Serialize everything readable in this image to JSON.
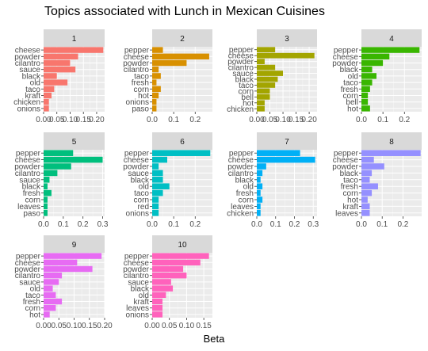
{
  "title": "Topics associated with Lunch in Mexican Cuisines",
  "xlabel": "Beta",
  "chart_data": {
    "type": "bar",
    "orientation": "horizontal",
    "facet_layout": {
      "columns": 4,
      "rows": 3
    },
    "grid": true,
    "legend": "none",
    "panels": [
      {
        "name": "1",
        "color": "#F8766D",
        "xlim": [
          0,
          0.23
        ],
        "xticks": [
          "0.00",
          "0.05",
          "0.10",
          "0.15",
          "0.20"
        ],
        "xtick_values": [
          0,
          0.05,
          0.1,
          0.15,
          0.2
        ],
        "categories": [
          "cheese",
          "powder",
          "cilantro",
          "sauce",
          "black",
          "old",
          "taco",
          "kraft",
          "chicken",
          "onions"
        ],
        "values": [
          0.225,
          0.13,
          0.1,
          0.12,
          0.05,
          0.09,
          0.04,
          0.03,
          0.02,
          0.02
        ]
      },
      {
        "name": "2",
        "color": "#D89000",
        "xlim": [
          0,
          0.28
        ],
        "xticks": [
          "0.0",
          "0.1",
          "0.2"
        ],
        "xtick_values": [
          0,
          0.1,
          0.2
        ],
        "categories": [
          "pepper",
          "cheese",
          "powder",
          "cilantro",
          "taco",
          "fresh",
          "corn",
          "hot",
          "onions",
          "paso"
        ],
        "values": [
          0.05,
          0.265,
          0.16,
          0.03,
          0.04,
          0.02,
          0.04,
          0.03,
          0.02,
          0.02
        ]
      },
      {
        "name": "3",
        "color": "#A3A500",
        "xlim": [
          0,
          0.23
        ],
        "xticks": [
          "0.00",
          "0.05",
          "0.10",
          "0.15",
          "0.20"
        ],
        "xtick_values": [
          0,
          0.05,
          0.1,
          0.15,
          0.2
        ],
        "categories": [
          "pepper",
          "cheese",
          "powder",
          "cilantro",
          "sauce",
          "black",
          "taco",
          "corn",
          "bell",
          "hot",
          "chicken"
        ],
        "values": [
          0.07,
          0.22,
          0.03,
          0.07,
          0.1,
          0.08,
          0.07,
          0.05,
          0.05,
          0.03,
          0.03
        ]
      },
      {
        "name": "4",
        "color": "#39B600",
        "xlim": [
          0,
          0.28
        ],
        "xticks": [
          "0.0",
          "0.1",
          "0.2"
        ],
        "xtick_values": [
          0,
          0.1,
          0.2
        ],
        "categories": [
          "pepper",
          "cheese",
          "powder",
          "black",
          "old",
          "taco",
          "fresh",
          "corn",
          "bell",
          "hot"
        ],
        "values": [
          0.27,
          0.13,
          0.1,
          0.05,
          0.07,
          0.05,
          0.04,
          0.03,
          0.03,
          0.04
        ]
      },
      {
        "name": "5",
        "color": "#00BF7D",
        "xlim": [
          0,
          0.31
        ],
        "xticks": [
          "0.0",
          "0.1",
          "0.2",
          "0.3"
        ],
        "xtick_values": [
          0,
          0.1,
          0.2,
          0.3
        ],
        "categories": [
          "pepper",
          "cheese",
          "powder",
          "cilantro",
          "sauce",
          "black",
          "fresh",
          "corn",
          "leaves",
          "paso"
        ],
        "values": [
          0.15,
          0.3,
          0.14,
          0.07,
          0.03,
          0.02,
          0.04,
          0.02,
          0.02,
          0.02
        ]
      },
      {
        "name": "6",
        "color": "#00BFC4",
        "xlim": [
          0,
          0.28
        ],
        "xticks": [
          "0.0",
          "0.1",
          "0.2"
        ],
        "xtick_values": [
          0,
          0.1,
          0.2
        ],
        "categories": [
          "pepper",
          "cheese",
          "powder",
          "sauce",
          "black",
          "old",
          "taco",
          "corn",
          "red",
          "onions"
        ],
        "values": [
          0.27,
          0.07,
          0.03,
          0.05,
          0.05,
          0.08,
          0.05,
          0.03,
          0.03,
          0.03
        ]
      },
      {
        "name": "7",
        "color": "#00B0F6",
        "xlim": [
          0,
          0.32
        ],
        "xticks": [
          "0.0",
          "0.1",
          "0.2",
          "0.3"
        ],
        "xtick_values": [
          0,
          0.1,
          0.2,
          0.3
        ],
        "categories": [
          "pepper",
          "cheese",
          "powder",
          "cilantro",
          "black",
          "old",
          "fresh",
          "corn",
          "leaves",
          "chicken"
        ],
        "values": [
          0.23,
          0.31,
          0.05,
          0.03,
          0.02,
          0.03,
          0.02,
          0.03,
          0.02,
          0.02
        ]
      },
      {
        "name": "8",
        "color": "#9590FF",
        "xlim": [
          0,
          0.29
        ],
        "xticks": [
          "0.0",
          "0.1",
          "0.2"
        ],
        "xtick_values": [
          0,
          0.1,
          0.2
        ],
        "categories": [
          "pepper",
          "cheese",
          "powder",
          "black",
          "taco",
          "fresh",
          "corn",
          "hot",
          "kraft",
          "leaves"
        ],
        "values": [
          0.285,
          0.06,
          0.11,
          0.05,
          0.04,
          0.08,
          0.05,
          0.03,
          0.04,
          0.04
        ]
      },
      {
        "name": "9",
        "color": "#E76BF3",
        "xlim": [
          0,
          0.2
        ],
        "xticks": [
          "0.00",
          "0.05",
          "0.10",
          "0.15",
          "0.20"
        ],
        "xtick_values": [
          0,
          0.05,
          0.1,
          0.15,
          0.2
        ],
        "categories": [
          "pepper",
          "cheese",
          "powder",
          "cilantro",
          "sauce",
          "old",
          "taco",
          "fresh",
          "corn",
          "hot"
        ],
        "values": [
          0.19,
          0.11,
          0.16,
          0.06,
          0.05,
          0.03,
          0.04,
          0.06,
          0.04,
          0.02
        ]
      },
      {
        "name": "10",
        "color": "#FF62BC",
        "xlim": [
          0,
          0.175
        ],
        "xticks": [
          "0.00",
          "0.05",
          "0.10",
          "0.15"
        ],
        "xtick_values": [
          0,
          0.05,
          0.1,
          0.15
        ],
        "categories": [
          "pepper",
          "cheese",
          "powder",
          "cilantro",
          "sauce",
          "black",
          "old",
          "kraft",
          "leaves",
          "onions"
        ],
        "values": [
          0.165,
          0.14,
          0.09,
          0.1,
          0.055,
          0.06,
          0.04,
          0.03,
          0.03,
          0.03
        ]
      }
    ]
  }
}
